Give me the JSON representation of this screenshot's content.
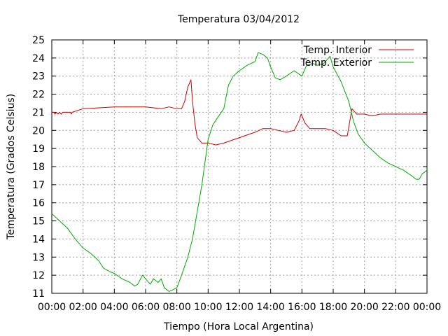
{
  "chart_data": {
    "type": "line",
    "title": "Temperatura 03/04/2012",
    "xlabel": "Tiempo (Hora Local Argentina)",
    "ylabel": "Temperatura (Grados Celsius)",
    "xlim": [
      0,
      24
    ],
    "ylim": [
      11,
      25
    ],
    "x_ticks": [
      {
        "value": 0,
        "label": "00:00"
      },
      {
        "value": 2,
        "label": "02:00"
      },
      {
        "value": 4,
        "label": "04:00"
      },
      {
        "value": 6,
        "label": "06:00"
      },
      {
        "value": 8,
        "label": "08:00"
      },
      {
        "value": 10,
        "label": "10:00"
      },
      {
        "value": 12,
        "label": "12:00"
      },
      {
        "value": 14,
        "label": "14:00"
      },
      {
        "value": 16,
        "label": "16:00"
      },
      {
        "value": 18,
        "label": "18:00"
      },
      {
        "value": 20,
        "label": "20:00"
      },
      {
        "value": 22,
        "label": "22:00"
      },
      {
        "value": 24,
        "label": "00:00"
      }
    ],
    "y_ticks": [
      11,
      12,
      13,
      14,
      15,
      16,
      17,
      18,
      19,
      20,
      21,
      22,
      23,
      24,
      25
    ],
    "grid": true,
    "legend": "top-right",
    "series": [
      {
        "name": "Temp. Interior",
        "color": "#cc0000",
        "points": [
          [
            0,
            21.0
          ],
          [
            0.15,
            21.0
          ],
          [
            0.2,
            20.9
          ],
          [
            0.3,
            21.0
          ],
          [
            0.4,
            20.9
          ],
          [
            0.5,
            21.0
          ],
          [
            0.6,
            20.9
          ],
          [
            0.7,
            21.0
          ],
          [
            1.2,
            21.0
          ],
          [
            1.25,
            20.9
          ],
          [
            1.3,
            21.0
          ],
          [
            2.0,
            21.2
          ],
          [
            4.0,
            21.3
          ],
          [
            6.0,
            21.3
          ],
          [
            7.0,
            21.2
          ],
          [
            7.5,
            21.3
          ],
          [
            8.0,
            21.2
          ],
          [
            8.3,
            21.2
          ],
          [
            8.5,
            21.6
          ],
          [
            8.7,
            22.4
          ],
          [
            8.9,
            22.8
          ],
          [
            9.0,
            21.6
          ],
          [
            9.15,
            20.4
          ],
          [
            9.3,
            19.6
          ],
          [
            9.6,
            19.3
          ],
          [
            10.0,
            19.3
          ],
          [
            10.5,
            19.2
          ],
          [
            11.0,
            19.3
          ],
          [
            12.0,
            19.6
          ],
          [
            13.0,
            19.9
          ],
          [
            13.5,
            20.1
          ],
          [
            14.0,
            20.1
          ],
          [
            14.5,
            20.0
          ],
          [
            15.0,
            19.9
          ],
          [
            15.5,
            20.0
          ],
          [
            15.8,
            20.5
          ],
          [
            15.95,
            20.9
          ],
          [
            16.2,
            20.4
          ],
          [
            16.5,
            20.1
          ],
          [
            17.5,
            20.1
          ],
          [
            18.0,
            20.0
          ],
          [
            18.5,
            19.7
          ],
          [
            18.9,
            19.7
          ],
          [
            19.2,
            21.2
          ],
          [
            19.5,
            20.9
          ],
          [
            20.0,
            20.9
          ],
          [
            20.5,
            20.8
          ],
          [
            21.0,
            20.9
          ],
          [
            22.0,
            20.9
          ],
          [
            23.0,
            20.9
          ],
          [
            24.0,
            20.9
          ]
        ]
      },
      {
        "name": "Temp. Exterior",
        "color": "#00aa00",
        "points": [
          [
            0,
            15.4
          ],
          [
            0.5,
            15.0
          ],
          [
            1.0,
            14.6
          ],
          [
            1.5,
            14.0
          ],
          [
            2.0,
            13.5
          ],
          [
            2.5,
            13.2
          ],
          [
            3.0,
            12.8
          ],
          [
            3.3,
            12.4
          ],
          [
            3.7,
            12.2
          ],
          [
            4.0,
            12.1
          ],
          [
            4.5,
            11.8
          ],
          [
            5.0,
            11.6
          ],
          [
            5.3,
            11.4
          ],
          [
            5.5,
            11.5
          ],
          [
            5.8,
            12.0
          ],
          [
            6.0,
            11.8
          ],
          [
            6.3,
            11.5
          ],
          [
            6.5,
            11.8
          ],
          [
            6.8,
            11.6
          ],
          [
            7.0,
            11.8
          ],
          [
            7.2,
            11.3
          ],
          [
            7.5,
            11.1
          ],
          [
            8.0,
            11.3
          ],
          [
            8.3,
            12.0
          ],
          [
            8.7,
            13.0
          ],
          [
            9.0,
            14.0
          ],
          [
            9.3,
            15.5
          ],
          [
            9.6,
            17.0
          ],
          [
            10.0,
            19.5
          ],
          [
            10.3,
            20.3
          ],
          [
            10.6,
            20.7
          ],
          [
            11.0,
            21.2
          ],
          [
            11.3,
            22.5
          ],
          [
            11.6,
            23.0
          ],
          [
            12.0,
            23.3
          ],
          [
            12.5,
            23.6
          ],
          [
            13.0,
            23.8
          ],
          [
            13.2,
            24.3
          ],
          [
            13.5,
            24.2
          ],
          [
            13.8,
            24.0
          ],
          [
            14.0,
            23.5
          ],
          [
            14.3,
            22.9
          ],
          [
            14.6,
            22.8
          ],
          [
            15.0,
            23.0
          ],
          [
            15.5,
            23.3
          ],
          [
            16.0,
            23.0
          ],
          [
            16.3,
            23.6
          ],
          [
            16.7,
            23.7
          ],
          [
            17.0,
            23.6
          ],
          [
            17.4,
            23.7
          ],
          [
            17.8,
            24.1
          ],
          [
            18.0,
            23.5
          ],
          [
            18.5,
            22.7
          ],
          [
            19.0,
            21.6
          ],
          [
            19.3,
            20.5
          ],
          [
            19.6,
            19.8
          ],
          [
            20.0,
            19.3
          ],
          [
            20.5,
            18.9
          ],
          [
            21.0,
            18.5
          ],
          [
            21.5,
            18.2
          ],
          [
            22.0,
            18.0
          ],
          [
            22.5,
            17.8
          ],
          [
            23.0,
            17.5
          ],
          [
            23.3,
            17.3
          ],
          [
            23.5,
            17.3
          ],
          [
            23.7,
            17.6
          ],
          [
            24.0,
            17.8
          ]
        ]
      }
    ]
  }
}
